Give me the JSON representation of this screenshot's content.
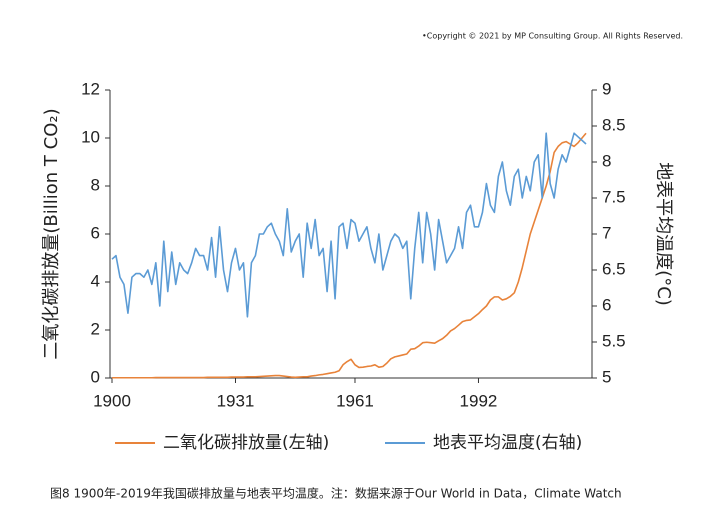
{
  "chart_data": {
    "type": "line",
    "copyright": "•Copyright © 2021 by MP Consulting Group. All Rights Reserved.",
    "ylabel": "二氧化碳排放量(Billion T CO₂)",
    "y2label": "地表平均温度(°C)",
    "caption": "图8  1900年-2019年我国碳排放量与地表平均温度。注：数据来源于Our World in Data，Climate Watch",
    "x": [
      1900,
      1901,
      1902,
      1903,
      1904,
      1905,
      1906,
      1907,
      1908,
      1909,
      1910,
      1911,
      1912,
      1913,
      1914,
      1915,
      1916,
      1917,
      1918,
      1919,
      1920,
      1921,
      1922,
      1923,
      1924,
      1925,
      1926,
      1927,
      1928,
      1929,
      1930,
      1931,
      1932,
      1933,
      1934,
      1935,
      1936,
      1937,
      1938,
      1939,
      1940,
      1941,
      1942,
      1943,
      1944,
      1945,
      1946,
      1947,
      1948,
      1949,
      1950,
      1951,
      1952,
      1953,
      1954,
      1955,
      1956,
      1957,
      1958,
      1959,
      1960,
      1961,
      1962,
      1963,
      1964,
      1965,
      1966,
      1967,
      1968,
      1969,
      1970,
      1971,
      1972,
      1973,
      1974,
      1975,
      1976,
      1977,
      1978,
      1979,
      1980,
      1981,
      1982,
      1983,
      1984,
      1985,
      1986,
      1987,
      1988,
      1989,
      1990,
      1991,
      1992,
      1993,
      1994,
      1995,
      1996,
      1997,
      1998,
      1999,
      2000,
      2001,
      2002,
      2003,
      2004,
      2005,
      2006,
      2007,
      2008,
      2009,
      2010,
      2011,
      2012,
      2013,
      2014,
      2015,
      2016,
      2017,
      2018,
      2019
    ],
    "series": [
      {
        "name": "二氧化碳排放量(左轴)",
        "color": "#e8833a",
        "values": [
          0.01,
          0.01,
          0.01,
          0.01,
          0.01,
          0.01,
          0.01,
          0.01,
          0.01,
          0.01,
          0.01,
          0.02,
          0.02,
          0.02,
          0.02,
          0.02,
          0.02,
          0.02,
          0.02,
          0.02,
          0.02,
          0.02,
          0.02,
          0.02,
          0.03,
          0.03,
          0.03,
          0.03,
          0.03,
          0.03,
          0.04,
          0.04,
          0.04,
          0.04,
          0.05,
          0.05,
          0.05,
          0.06,
          0.07,
          0.08,
          0.09,
          0.1,
          0.1,
          0.08,
          0.06,
          0.04,
          0.03,
          0.04,
          0.05,
          0.05,
          0.08,
          0.1,
          0.13,
          0.15,
          0.18,
          0.21,
          0.24,
          0.3,
          0.55,
          0.68,
          0.78,
          0.55,
          0.44,
          0.45,
          0.48,
          0.5,
          0.55,
          0.45,
          0.48,
          0.62,
          0.8,
          0.88,
          0.92,
          0.96,
          1.0,
          1.2,
          1.22,
          1.33,
          1.47,
          1.49,
          1.47,
          1.45,
          1.55,
          1.64,
          1.78,
          1.96,
          2.06,
          2.2,
          2.35,
          2.4,
          2.42,
          2.55,
          2.68,
          2.85,
          3.0,
          3.25,
          3.38,
          3.38,
          3.25,
          3.3,
          3.4,
          3.55,
          4.0,
          4.6,
          5.3,
          6.0,
          6.5,
          7.0,
          7.5,
          8.0,
          8.6,
          9.4,
          9.65,
          9.8,
          9.85,
          9.75,
          9.65,
          9.8,
          10.0,
          10.2
        ]
      },
      {
        "name": "地表平均温度(右轴)",
        "color": "#5b9bd5",
        "axis": "y2",
        "values": [
          6.65,
          6.7,
          6.4,
          6.3,
          5.9,
          6.4,
          6.45,
          6.45,
          6.4,
          6.5,
          6.3,
          6.6,
          6.0,
          6.9,
          6.2,
          6.75,
          6.3,
          6.6,
          6.5,
          6.45,
          6.6,
          6.8,
          6.7,
          6.7,
          6.5,
          6.95,
          6.4,
          7.1,
          6.5,
          6.2,
          6.6,
          6.8,
          6.5,
          6.6,
          5.85,
          6.6,
          6.7,
          7.0,
          7.0,
          7.1,
          7.15,
          7.0,
          6.9,
          6.7,
          7.35,
          6.75,
          6.9,
          7.0,
          6.4,
          7.15,
          6.8,
          7.2,
          6.7,
          6.8,
          6.2,
          6.9,
          6.1,
          7.1,
          7.15,
          6.8,
          7.2,
          7.15,
          6.9,
          7.0,
          7.1,
          6.8,
          6.6,
          7.0,
          6.5,
          6.7,
          6.9,
          7.0,
          6.95,
          6.8,
          6.9,
          6.1,
          6.8,
          7.3,
          6.6,
          7.3,
          7.0,
          6.5,
          7.2,
          6.9,
          6.6,
          6.7,
          6.8,
          7.1,
          6.8,
          7.3,
          7.4,
          7.1,
          7.1,
          7.3,
          7.7,
          7.4,
          7.3,
          7.8,
          8.0,
          7.6,
          7.4,
          7.8,
          7.9,
          7.5,
          7.8,
          7.6,
          8.0,
          8.1,
          7.5,
          8.4,
          7.7,
          7.5,
          7.9,
          8.1,
          8.0,
          8.2,
          8.4,
          8.35,
          8.3,
          8.25
        ]
      }
    ],
    "xlim": [
      1900,
      2020
    ],
    "xticks": [
      1900,
      1931,
      1961,
      1992
    ],
    "ylim": [
      0,
      12
    ],
    "yticks": [
      0,
      2,
      4,
      6,
      8,
      10,
      12
    ],
    "y2lim": [
      5,
      9
    ],
    "y2ticks": [
      5,
      5.5,
      6,
      6.5,
      7,
      7.5,
      8,
      8.5,
      9
    ],
    "legend": "bottom"
  }
}
